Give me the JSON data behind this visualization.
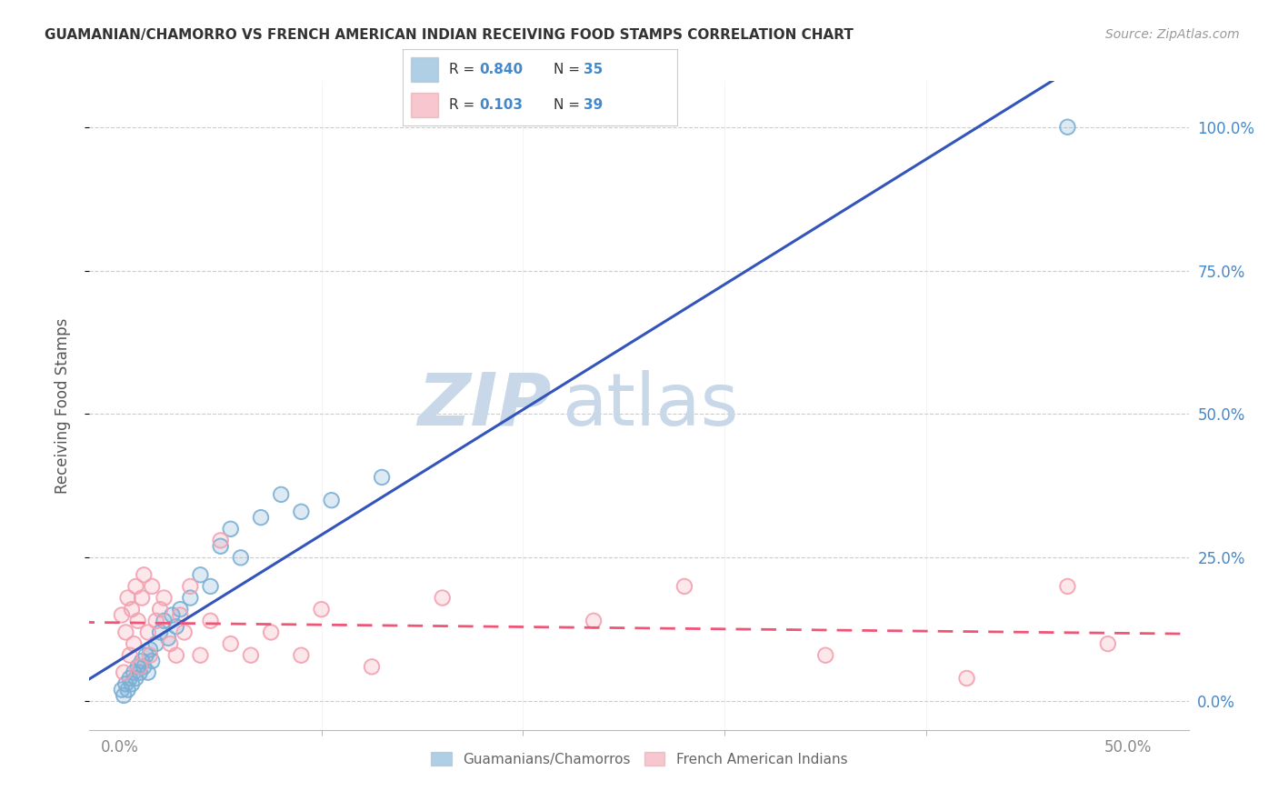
{
  "title": "GUAMANIAN/CHAMORRO VS FRENCH AMERICAN INDIAN RECEIVING FOOD STAMPS CORRELATION CHART",
  "source": "Source: ZipAtlas.com",
  "ylabel": "Receiving Food Stamps",
  "ytick_vals": [
    0,
    25,
    50,
    75,
    100
  ],
  "xtick_vals": [
    0,
    50
  ],
  "xtick_minor": [
    10,
    20,
    30,
    40
  ],
  "xlim": [
    -1.5,
    53
  ],
  "ylim": [
    -5,
    108
  ],
  "legend_r1": "R = 0.840",
  "legend_n1": "N = 35",
  "legend_r2": "R = 0.103",
  "legend_n2": "N = 39",
  "color_blue": "#7BAFD4",
  "color_pink": "#F4A0B0",
  "line_blue": "#3355BB",
  "line_pink": "#EE5577",
  "watermark_zip": "ZIP",
  "watermark_atlas": "atlas",
  "watermark_color": "#C8D8E8",
  "background": "#FFFFFF",
  "guamanian_x": [
    0.1,
    0.2,
    0.3,
    0.4,
    0.5,
    0.6,
    0.7,
    0.8,
    0.9,
    1.0,
    1.1,
    1.2,
    1.3,
    1.4,
    1.5,
    1.6,
    1.8,
    2.0,
    2.2,
    2.4,
    2.6,
    2.8,
    3.0,
    3.5,
    4.0,
    4.5,
    5.0,
    5.5,
    6.0,
    7.0,
    8.0,
    9.0,
    10.5,
    13.0,
    47.0
  ],
  "guamanian_y": [
    2,
    1,
    3,
    2,
    4,
    3,
    5,
    4,
    6,
    5,
    7,
    6,
    8,
    5,
    9,
    7,
    10,
    12,
    14,
    11,
    15,
    13,
    16,
    18,
    22,
    20,
    27,
    30,
    25,
    32,
    36,
    33,
    35,
    39,
    100
  ],
  "french_x": [
    0.1,
    0.2,
    0.3,
    0.4,
    0.5,
    0.6,
    0.7,
    0.8,
    0.9,
    1.0,
    1.1,
    1.2,
    1.4,
    1.5,
    1.6,
    1.8,
    2.0,
    2.2,
    2.5,
    2.8,
    3.0,
    3.2,
    3.5,
    4.0,
    4.5,
    5.0,
    5.5,
    6.5,
    7.5,
    9.0,
    10.0,
    12.5,
    16.0,
    23.5,
    28.0,
    35.0,
    42.0,
    47.0,
    49.0
  ],
  "french_y": [
    15,
    5,
    12,
    18,
    8,
    16,
    10,
    20,
    14,
    6,
    18,
    22,
    12,
    8,
    20,
    14,
    16,
    18,
    10,
    8,
    15,
    12,
    20,
    8,
    14,
    28,
    10,
    8,
    12,
    8,
    16,
    6,
    18,
    14,
    20,
    8,
    4,
    20,
    10
  ]
}
